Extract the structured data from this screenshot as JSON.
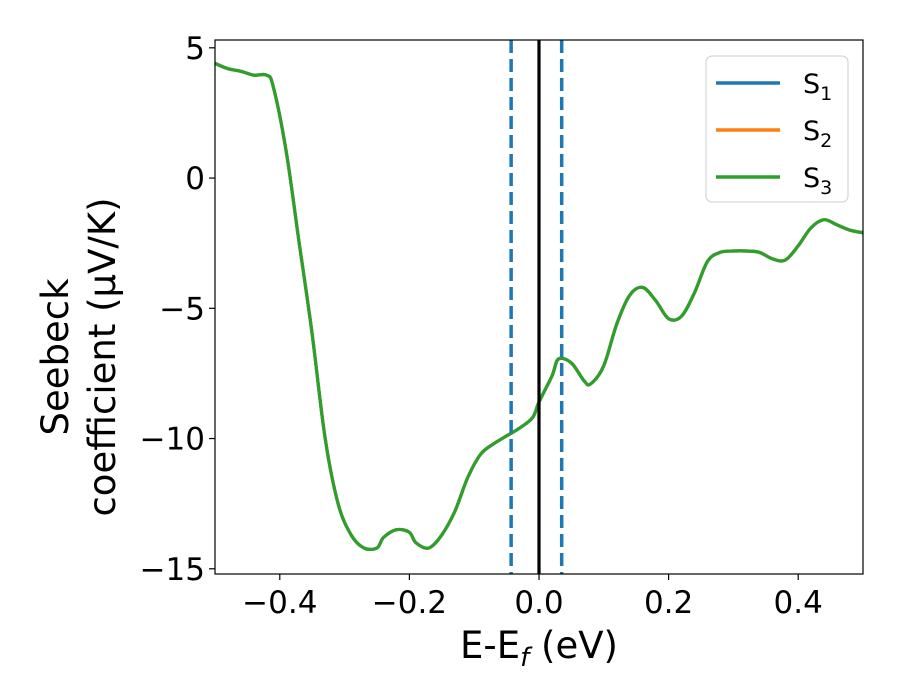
{
  "chart_data": {
    "type": "line",
    "title": "",
    "xlabel": {
      "main": "E-E",
      "sub": "f",
      "tail": " (eV)"
    },
    "ylabel": {
      "line1": "Seebeck",
      "line2": "coefficient  (μV/K)"
    },
    "xlim": [
      -0.5,
      0.5
    ],
    "ylim": [
      -15.2,
      5.3
    ],
    "xticks": [
      -0.4,
      -0.2,
      0.0,
      0.2,
      0.4
    ],
    "xtick_labels": [
      "−0.4",
      "−0.2",
      "0.0",
      "0.2",
      "0.4"
    ],
    "yticks": [
      -15,
      -10,
      -5,
      0,
      5
    ],
    "ytick_labels": [
      "−15",
      "−10",
      "−5",
      "0",
      "5"
    ],
    "grid": false,
    "legend_position": "top-right",
    "vertical_lines": [
      {
        "x": -0.043,
        "style": "dashed",
        "color": "#1f77b4"
      },
      {
        "x": 0.0,
        "style": "solid",
        "color": "#000000"
      },
      {
        "x": 0.035,
        "style": "dashed",
        "color": "#1f77b4"
      }
    ],
    "x": [
      -0.5,
      -0.48,
      -0.46,
      -0.44,
      -0.42,
      -0.41,
      -0.39,
      -0.37,
      -0.35,
      -0.33,
      -0.31,
      -0.29,
      -0.27,
      -0.25,
      -0.24,
      -0.22,
      -0.2,
      -0.19,
      -0.17,
      -0.15,
      -0.13,
      -0.11,
      -0.09,
      -0.07,
      -0.05,
      -0.03,
      -0.01,
      0.0,
      0.02,
      0.03,
      0.05,
      0.07,
      0.08,
      0.1,
      0.12,
      0.14,
      0.16,
      0.18,
      0.2,
      0.22,
      0.24,
      0.26,
      0.28,
      0.3,
      0.32,
      0.34,
      0.36,
      0.38,
      0.4,
      0.42,
      0.44,
      0.46,
      0.48,
      0.5
    ],
    "series": [
      {
        "name": "S",
        "sub": "1",
        "color": "#1f77b4",
        "values": [
          4.4,
          4.2,
          4.1,
          3.95,
          3.95,
          3.5,
          1.0,
          -2.5,
          -6.0,
          -10.0,
          -12.5,
          -13.7,
          -14.2,
          -14.2,
          -13.8,
          -13.5,
          -13.6,
          -14.0,
          -14.2,
          -13.7,
          -12.8,
          -11.5,
          -10.6,
          -10.2,
          -9.9,
          -9.6,
          -9.2,
          -8.6,
          -7.6,
          -6.95,
          -7.1,
          -7.8,
          -7.9,
          -7.2,
          -5.6,
          -4.5,
          -4.2,
          -4.7,
          -5.4,
          -5.3,
          -4.4,
          -3.2,
          -2.85,
          -2.8,
          -2.8,
          -2.85,
          -3.1,
          -3.15,
          -2.6,
          -1.9,
          -1.6,
          -1.8,
          -2.0,
          -2.1
        ]
      },
      {
        "name": "S",
        "sub": "2",
        "color": "#ff7f0e",
        "values": [
          4.4,
          4.2,
          4.1,
          3.95,
          3.95,
          3.5,
          1.0,
          -2.5,
          -6.0,
          -10.0,
          -12.5,
          -13.7,
          -14.2,
          -14.2,
          -13.8,
          -13.5,
          -13.6,
          -14.0,
          -14.2,
          -13.7,
          -12.8,
          -11.5,
          -10.6,
          -10.2,
          -9.9,
          -9.6,
          -9.2,
          -8.6,
          -7.6,
          -6.95,
          -7.1,
          -7.8,
          -7.9,
          -7.2,
          -5.6,
          -4.5,
          -4.2,
          -4.7,
          -5.4,
          -5.3,
          -4.4,
          -3.2,
          -2.85,
          -2.8,
          -2.8,
          -2.85,
          -3.1,
          -3.15,
          -2.6,
          -1.9,
          -1.6,
          -1.8,
          -2.0,
          -2.1
        ]
      },
      {
        "name": "S",
        "sub": "3",
        "color": "#2ca02c",
        "values": [
          4.4,
          4.2,
          4.1,
          3.95,
          3.95,
          3.5,
          1.0,
          -2.5,
          -6.0,
          -10.0,
          -12.5,
          -13.7,
          -14.2,
          -14.2,
          -13.8,
          -13.5,
          -13.6,
          -14.0,
          -14.2,
          -13.7,
          -12.8,
          -11.5,
          -10.6,
          -10.2,
          -9.9,
          -9.6,
          -9.2,
          -8.6,
          -7.6,
          -6.95,
          -7.1,
          -7.8,
          -7.9,
          -7.2,
          -5.6,
          -4.5,
          -4.2,
          -4.7,
          -5.4,
          -5.3,
          -4.4,
          -3.2,
          -2.85,
          -2.8,
          -2.8,
          -2.85,
          -3.1,
          -3.15,
          -2.6,
          -1.9,
          -1.6,
          -1.8,
          -2.0,
          -2.1
        ]
      }
    ]
  }
}
